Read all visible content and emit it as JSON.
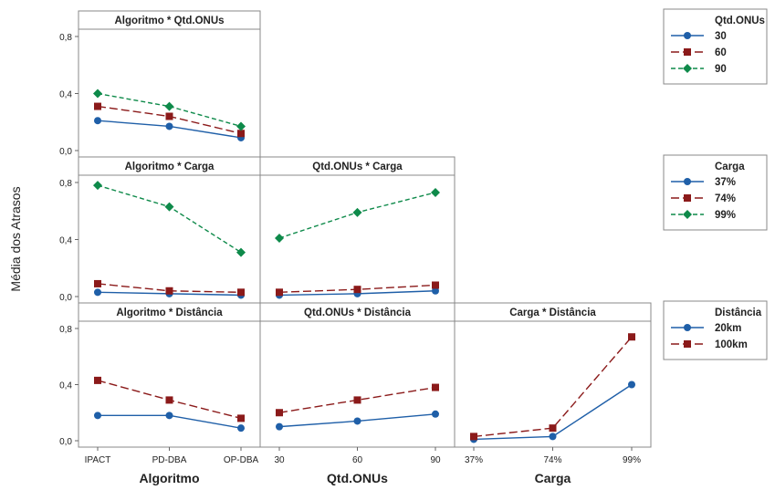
{
  "chart_data": {
    "type": "line",
    "ylabel": "Média dos Atrasos",
    "ylim": [
      0,
      0.8
    ],
    "yticks": [
      "0,0",
      "0,4",
      "0,8"
    ],
    "x_factors": [
      {
        "name": "Algoritmo",
        "levels": [
          "IPACT",
          "PD-DBA",
          "OP-DBA"
        ]
      },
      {
        "name": "Qtd.ONUs",
        "levels": [
          "30",
          "60",
          "90"
        ]
      },
      {
        "name": "Carga",
        "levels": [
          "37%",
          "74%",
          "99%"
        ]
      }
    ],
    "legends": [
      {
        "title": "Qtd.ONUs",
        "entries": [
          "30",
          "60",
          "90"
        ]
      },
      {
        "title": "Carga",
        "entries": [
          "37%",
          "74%",
          "99%"
        ]
      },
      {
        "title": "Distância",
        "entries": [
          "20km",
          "100km"
        ]
      }
    ],
    "panels": [
      {
        "title": "Algoritmo * Qtd.ONUs",
        "row": 0,
        "col": 0,
        "x_factor": 0,
        "trace_legend": 0,
        "series": [
          {
            "name": "30",
            "values": [
              0.21,
              0.17,
              0.09
            ]
          },
          {
            "name": "60",
            "values": [
              0.31,
              0.24,
              0.12
            ]
          },
          {
            "name": "90",
            "values": [
              0.4,
              0.31,
              0.17
            ]
          }
        ]
      },
      {
        "title": "Algoritmo * Carga",
        "row": 1,
        "col": 0,
        "x_factor": 0,
        "trace_legend": 1,
        "series": [
          {
            "name": "37%",
            "values": [
              0.03,
              0.02,
              0.01
            ]
          },
          {
            "name": "74%",
            "values": [
              0.09,
              0.04,
              0.03
            ]
          },
          {
            "name": "99%",
            "values": [
              0.78,
              0.63,
              0.31
            ]
          }
        ]
      },
      {
        "title": "Qtd.ONUs * Carga",
        "row": 1,
        "col": 1,
        "x_factor": 1,
        "trace_legend": 1,
        "series": [
          {
            "name": "37%",
            "values": [
              0.01,
              0.02,
              0.04
            ]
          },
          {
            "name": "74%",
            "values": [
              0.03,
              0.05,
              0.08
            ]
          },
          {
            "name": "99%",
            "values": [
              0.41,
              0.59,
              0.73
            ]
          }
        ]
      },
      {
        "title": "Algoritmo * Distância",
        "row": 2,
        "col": 0,
        "x_factor": 0,
        "trace_legend": 2,
        "series": [
          {
            "name": "20km",
            "values": [
              0.18,
              0.18,
              0.09
            ]
          },
          {
            "name": "100km",
            "values": [
              0.43,
              0.29,
              0.16
            ]
          }
        ]
      },
      {
        "title": "Qtd.ONUs * Distância",
        "row": 2,
        "col": 1,
        "x_factor": 1,
        "trace_legend": 2,
        "series": [
          {
            "name": "20km",
            "values": [
              0.1,
              0.14,
              0.19
            ]
          },
          {
            "name": "100km",
            "values": [
              0.2,
              0.29,
              0.38
            ]
          }
        ]
      },
      {
        "title": "Carga * Distância",
        "row": 2,
        "col": 2,
        "x_factor": 2,
        "trace_legend": 2,
        "series": [
          {
            "name": "20km",
            "values": [
              0.01,
              0.03,
              0.4
            ]
          },
          {
            "name": "100km",
            "values": [
              0.03,
              0.09,
              0.74
            ]
          }
        ]
      }
    ],
    "series_styles": [
      {
        "color": "#1f5fa8",
        "dash": "solid",
        "marker": "circle"
      },
      {
        "color": "#8b1a1a",
        "dash": "long-dash",
        "marker": "square"
      },
      {
        "color": "#0e8a4a",
        "dash": "short-dash",
        "marker": "diamond"
      }
    ]
  }
}
